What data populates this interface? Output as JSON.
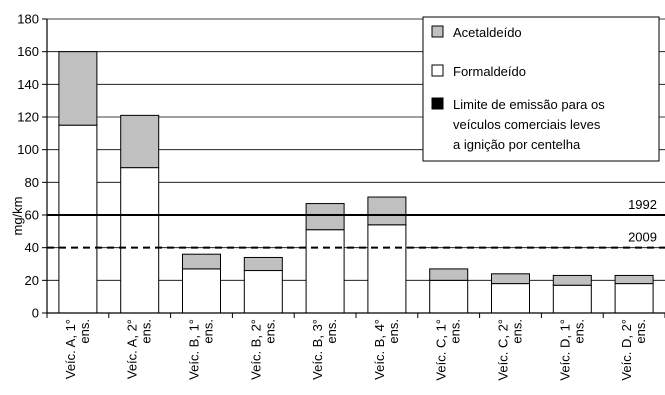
{
  "chart_data": {
    "type": "bar",
    "stacked": true,
    "ylabel": "mg/km",
    "ylim": [
      0,
      180
    ],
    "yticks": [
      0,
      20,
      40,
      60,
      80,
      100,
      120,
      140,
      160,
      180
    ],
    "grid": true,
    "categories": [
      [
        "Veíc. A, 1°",
        "ens."
      ],
      [
        "Veíc. A, 2°",
        "ens."
      ],
      [
        "Veíc. B, 1°",
        "ens."
      ],
      [
        "Veíc. B, 2°",
        "ens."
      ],
      [
        "Veíc. B, 3°",
        "ens."
      ],
      [
        "Veíc. B, 4°",
        "ens."
      ],
      [
        "Veíc. C, 1°",
        "ens."
      ],
      [
        "Veíc. C, 2°",
        "ens."
      ],
      [
        "Veíc. D, 1°",
        "ens."
      ],
      [
        "Veíc. D, 2°",
        "ens."
      ]
    ],
    "series": [
      {
        "name": "Formaldeído",
        "color": "#ffffff",
        "values": [
          115,
          89,
          27,
          26,
          51,
          54,
          20,
          18,
          17,
          18
        ]
      },
      {
        "name": "Acetaldeído",
        "color": "#c0c0c0",
        "values": [
          45,
          32,
          9,
          8,
          16,
          17,
          7,
          6,
          6,
          5
        ]
      }
    ],
    "reference_lines": [
      {
        "value": 60,
        "label": "1992",
        "style": "solid"
      },
      {
        "value": 40,
        "label": "2009",
        "style": "dashed"
      }
    ],
    "legend": {
      "placement": "top-right",
      "entries": [
        {
          "lines": [
            "Acetaldeído"
          ],
          "color": "#c0c0c0"
        },
        {
          "lines": [
            "Formaldeído"
          ],
          "color": "#ffffff"
        },
        {
          "lines": [
            "Limite de emissão para os",
            "veículos comerciais leves",
            "a ignição por centelha"
          ],
          "color": "#000000"
        }
      ]
    }
  }
}
